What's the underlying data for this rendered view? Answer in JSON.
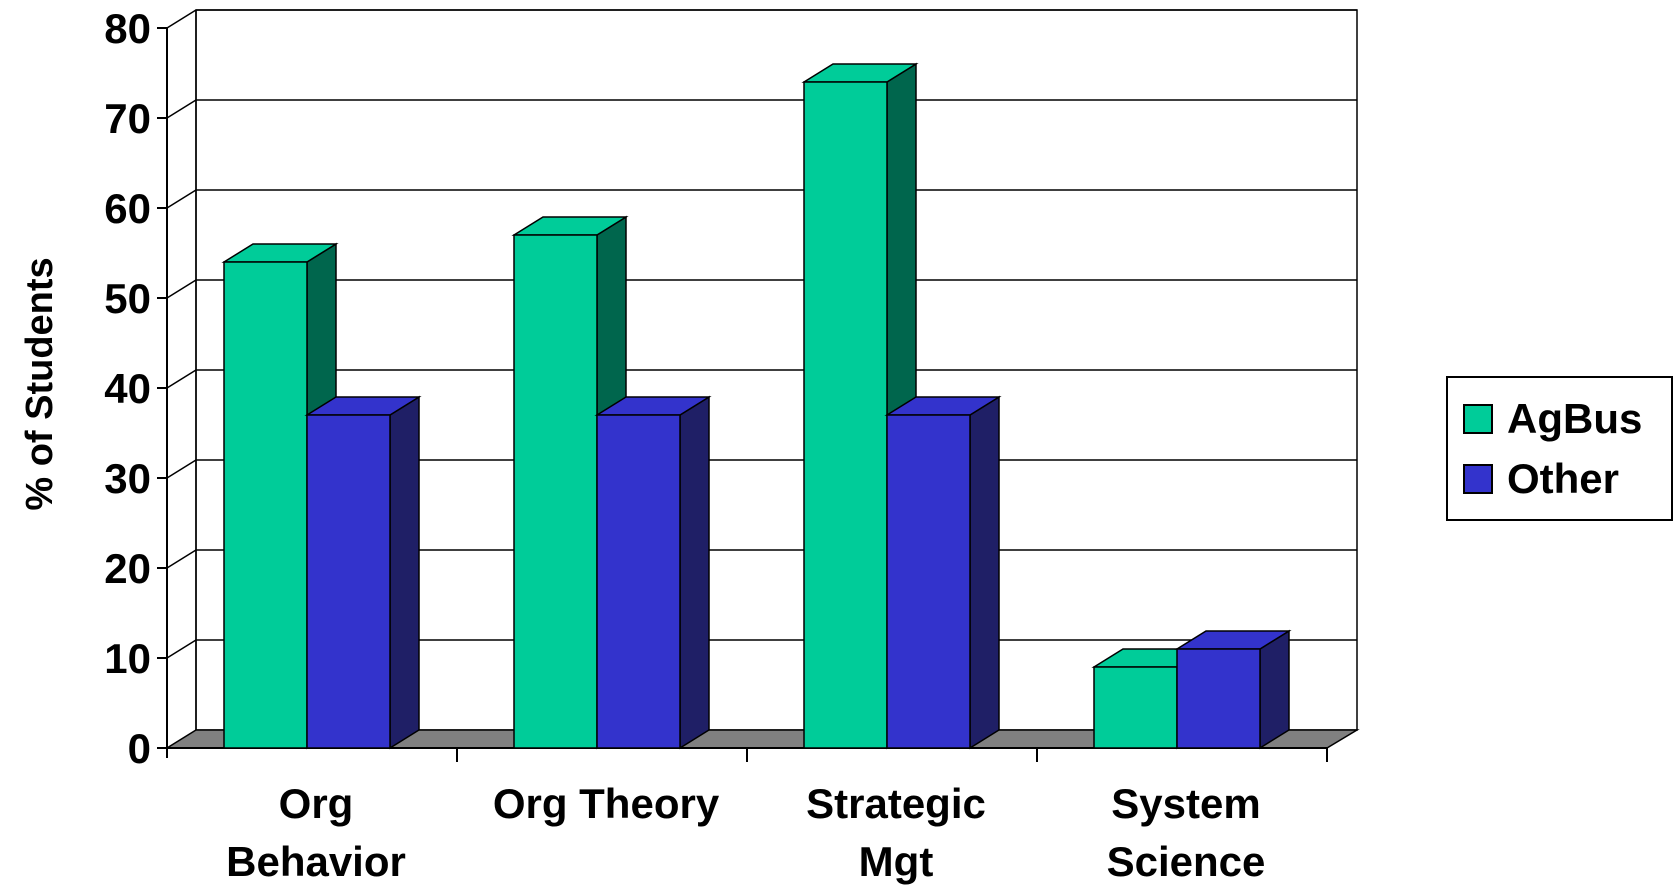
{
  "chart_data": {
    "type": "bar",
    "categories": [
      [
        "Org",
        "Behavior"
      ],
      [
        "Org Theory"
      ],
      [
        "Strategic",
        "Mgt"
      ],
      [
        "System",
        "Science"
      ]
    ],
    "series": [
      {
        "name": "AgBus",
        "values": [
          54,
          57,
          74,
          9
        ],
        "color": "#00CC99",
        "side_color": "#00664D"
      },
      {
        "name": "Other",
        "values": [
          37,
          37,
          37,
          11
        ],
        "color": "#3333CC",
        "side_color": "#1F1F66"
      }
    ],
    "title": "",
    "xlabel": "",
    "ylabel": "% of Students",
    "ylim": [
      0,
      80
    ],
    "yticks": [
      0,
      10,
      20,
      30,
      40,
      50,
      60,
      70,
      80
    ],
    "grid": true,
    "legend": "right",
    "floor_color": "#808080"
  }
}
